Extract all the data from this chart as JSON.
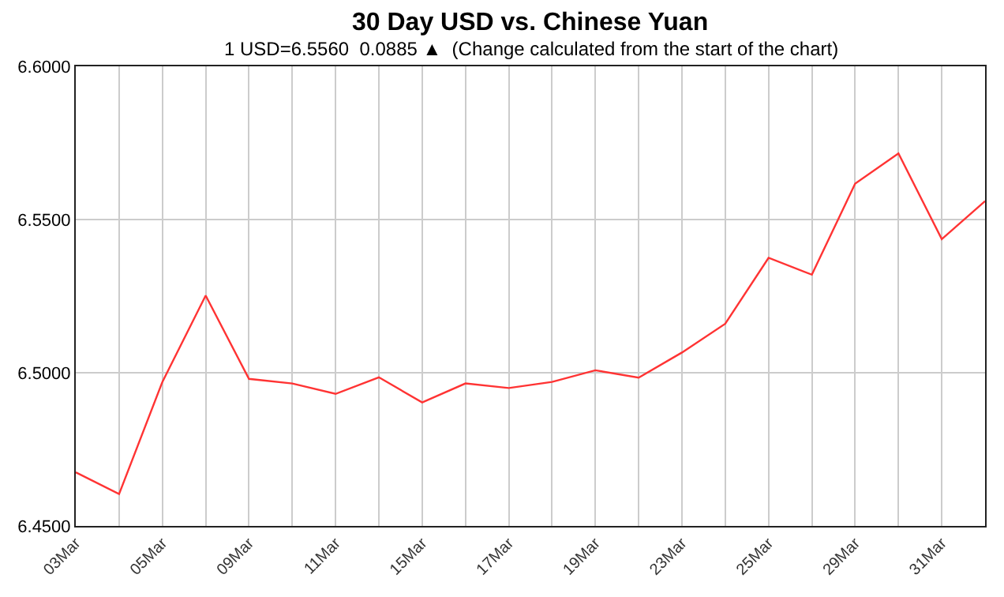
{
  "chart_data": {
    "type": "line",
    "title": "30 Day USD vs. Chinese Yuan",
    "subtitle": "1 USD=6.5560  0.0885 ▲  (Change calculated from the start of the chart)",
    "categories": [
      "03Mar",
      null,
      "05Mar",
      null,
      "09Mar",
      null,
      "11Mar",
      null,
      "15Mar",
      null,
      "17Mar",
      null,
      "19Mar",
      null,
      "23Mar",
      null,
      "25Mar",
      null,
      "29Mar",
      null,
      "31Mar",
      null
    ],
    "series": [
      {
        "color": "#ff3333",
        "values": [
          6.4675,
          6.4604,
          6.497,
          6.5252,
          6.498,
          6.4965,
          6.4931,
          6.4985,
          6.4903,
          6.4965,
          6.495,
          6.497,
          6.5008,
          6.4984,
          6.5066,
          6.516,
          6.5375,
          6.532,
          6.5617,
          6.5716,
          6.5436,
          6.556
        ]
      }
    ],
    "ylim": [
      6.45,
      6.6
    ],
    "yticks": [
      {
        "value": 6.45,
        "label": "6.4500"
      },
      {
        "value": 6.5,
        "label": "6.5000"
      },
      {
        "value": 6.55,
        "label": "6.5500"
      },
      {
        "value": 6.6,
        "label": "6.6000"
      }
    ],
    "grid": true,
    "legend": false,
    "marker": "none",
    "line_style": "solid"
  }
}
